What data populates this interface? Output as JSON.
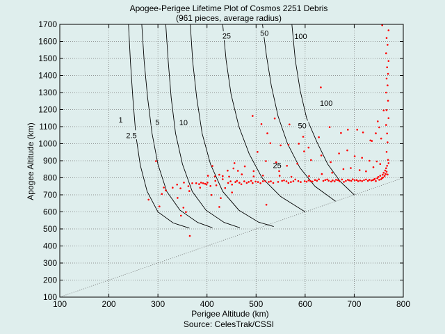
{
  "figure": {
    "background": "#dfeeed",
    "title_line1": "Apogee-Perigee Lifetime Plot of Cosmos 2251 Debris",
    "title_line2": "(961 pieces, average radius)",
    "source": "Source: CelesTrak/CSSI"
  },
  "chart_data": {
    "type": "scatter",
    "title": "Apogee-Perigee Lifetime Plot of Cosmos 2251 Debris",
    "subtitle": "(961 pieces, average radius)",
    "xlabel": "Perigee Altitude (km)",
    "ylabel": "Apogee Altitude (km)",
    "xlim": [
      100,
      800
    ],
    "ylim": [
      100,
      1700
    ],
    "xticks": [
      100,
      200,
      300,
      400,
      500,
      600,
      700,
      800
    ],
    "yticks": [
      100,
      200,
      300,
      400,
      500,
      600,
      700,
      800,
      900,
      1000,
      1100,
      1200,
      1300,
      1400,
      1500,
      1600,
      1700
    ],
    "grid": true,
    "point_color": "#ff0000",
    "curve_color": "#000000",
    "reference_line": {
      "style": "dotted",
      "points": [
        [
          100,
          100
        ],
        [
          800,
          800
        ]
      ]
    },
    "contours": [
      {
        "label": "1",
        "points": [
          [
            364,
            505
          ],
          [
            331,
            535
          ],
          [
            300,
            600
          ],
          [
            278,
            720
          ],
          [
            264,
            875
          ],
          [
            255,
            1050
          ],
          [
            249,
            1260
          ],
          [
            244,
            1480
          ],
          [
            240,
            1700
          ]
        ],
        "label_at": [
          292,
          520
        ]
      },
      {
        "label": "2.5",
        "points": [
          [
            411,
            507
          ],
          [
            381,
            538
          ],
          [
            345,
            610
          ],
          [
            318,
            720
          ],
          [
            300,
            880
          ],
          [
            288,
            1060
          ],
          [
            279,
            1270
          ],
          [
            272,
            1480
          ],
          [
            267,
            1700
          ]
        ],
        "label_at": [
          376,
          553
        ]
      },
      {
        "label": "5",
        "points": [
          [
            467,
            507
          ],
          [
            435,
            538
          ],
          [
            398,
            610
          ],
          [
            370,
            720
          ],
          [
            350,
            880
          ],
          [
            336,
            1060
          ],
          [
            327,
            1270
          ],
          [
            321,
            1480
          ],
          [
            316,
            1700
          ]
        ],
        "label_at": [
          432,
          580
        ]
      },
      {
        "label": "10",
        "points": [
          [
            536,
            514
          ],
          [
            505,
            540
          ],
          [
            465,
            610
          ],
          [
            432,
            720
          ],
          [
            407,
            880
          ],
          [
            390,
            1060
          ],
          [
            379,
            1270
          ],
          [
            371,
            1480
          ],
          [
            366,
            1700
          ]
        ],
        "label_at": [
          495,
          605
        ]
      },
      {
        "label": "25",
        "points": [
          [
            600,
            600
          ],
          [
            550,
            690
          ],
          [
            512,
            800
          ],
          [
            486,
            940
          ],
          [
            465,
            1100
          ],
          [
            449,
            1290
          ],
          [
            439,
            1490
          ],
          [
            432,
            1700
          ]
        ],
        "label_at": [
          556,
          1012
        ]
      },
      {
        "label": "50",
        "points": [
          [
            662,
            662
          ],
          [
            620,
            750
          ],
          [
            589,
            860
          ],
          [
            564,
            1000
          ],
          [
            545,
            1160
          ],
          [
            531,
            1340
          ],
          [
            521,
            1520
          ],
          [
            513,
            1700
          ]
        ],
        "label_at": [
          583,
          1053
        ]
      },
      {
        "label": "100",
        "points": [
          [
            700,
            700
          ],
          [
            671,
            780
          ],
          [
            646,
            880
          ],
          [
            624,
            1010
          ],
          [
            603,
            1150
          ],
          [
            590,
            1310
          ],
          [
            580,
            1490
          ],
          [
            573,
            1700
          ]
        ],
        "label_at": [
          628,
          1140
        ]
      },
      {
        "label": "1",
        "x": 224,
        "y": 1141
      },
      {
        "label": "2.5",
        "x": 246,
        "y": 1050
      },
      {
        "label": "5",
        "x": 299,
        "y": 1127
      },
      {
        "label": "10",
        "x": 352,
        "y": 1125
      },
      {
        "label": "25",
        "x": 543,
        "y": 873
      },
      {
        "label": "50",
        "x": 594,
        "y": 1107
      },
      {
        "label": "100",
        "x": 643,
        "y": 1238
      },
      {
        "label": "25",
        "x": 440,
        "y": 1632
      },
      {
        "label": "50",
        "x": 517,
        "y": 1650
      },
      {
        "label": "100",
        "x": 591,
        "y": 1630
      }
    ],
    "series": [
      {
        "points": [
          [
            281,
            672
          ],
          [
            296,
            898
          ],
          [
            303,
            632
          ],
          [
            308,
            705
          ],
          [
            312,
            743
          ],
          [
            316,
            726
          ],
          [
            346,
            738
          ],
          [
            340,
            682
          ],
          [
            352,
            625
          ],
          [
            357,
            599
          ],
          [
            347,
            578
          ],
          [
            365,
            459
          ],
          [
            370,
            768
          ],
          [
            378,
            768
          ],
          [
            384,
            763
          ],
          [
            388,
            772
          ],
          [
            392,
            768
          ],
          [
            396,
            765
          ],
          [
            401,
            772
          ],
          [
            407,
            752
          ],
          [
            411,
            869
          ],
          [
            417,
            782
          ],
          [
            425,
            629
          ],
          [
            432,
            792
          ],
          [
            437,
            740
          ],
          [
            443,
            770
          ],
          [
            448,
            779
          ],
          [
            451,
            760
          ],
          [
            458,
            775
          ],
          [
            461,
            782
          ],
          [
            466,
            771
          ],
          [
            470,
            762
          ],
          [
            476,
            779
          ],
          [
            481,
            770
          ],
          [
            485,
            776
          ],
          [
            490,
            782
          ],
          [
            493,
            769
          ],
          [
            499,
            778
          ],
          [
            504,
            775
          ],
          [
            509,
            768
          ],
          [
            514,
            780
          ],
          [
            519,
            780
          ],
          [
            521,
            642
          ],
          [
            526,
            776
          ],
          [
            530,
            779
          ],
          [
            535,
            770
          ],
          [
            538,
            1148
          ],
          [
            545,
            776
          ],
          [
            547,
            839
          ],
          [
            553,
            782
          ],
          [
            557,
            785
          ],
          [
            562,
            779
          ],
          [
            566,
            770
          ],
          [
            568,
            1113
          ],
          [
            571,
            775
          ],
          [
            576,
            780
          ],
          [
            580,
            790
          ],
          [
            586,
            781
          ],
          [
            591,
            775
          ],
          [
            596,
            1041
          ],
          [
            599,
            780
          ],
          [
            603,
            777
          ],
          [
            607,
            785
          ],
          [
            611,
            781
          ],
          [
            615,
            778
          ],
          [
            620,
            787
          ],
          [
            624,
            783
          ],
          [
            628,
            791
          ],
          [
            632,
            1330
          ],
          [
            637,
            782
          ],
          [
            641,
            787
          ],
          [
            645,
            790
          ],
          [
            648,
            783
          ],
          [
            653,
            778
          ],
          [
            656,
            785
          ],
          [
            660,
            779
          ],
          [
            663,
            788
          ],
          [
            667,
            786
          ],
          [
            670,
            780
          ],
          [
            675,
            790
          ],
          [
            679,
            776
          ],
          [
            683,
            782
          ],
          [
            687,
            788
          ],
          [
            690,
            785
          ],
          [
            694,
            782
          ],
          [
            697,
            791
          ],
          [
            701,
            785
          ],
          [
            705,
            787
          ],
          [
            708,
            780
          ],
          [
            712,
            784
          ],
          [
            716,
            781
          ],
          [
            720,
            786
          ],
          [
            724,
            790
          ],
          [
            728,
            782
          ],
          [
            731,
            788
          ],
          [
            735,
            784
          ],
          [
            738,
            786
          ],
          [
            740,
            790
          ],
          [
            742,
            794
          ],
          [
            744,
            781
          ],
          [
            747,
            797
          ],
          [
            749,
            805
          ],
          [
            751,
            788
          ],
          [
            753,
            812
          ],
          [
            755,
            792
          ],
          [
            757,
            799
          ],
          [
            758,
            818
          ],
          [
            759,
            802
          ],
          [
            760,
            830
          ],
          [
            762,
            811
          ],
          [
            763,
            843
          ],
          [
            764,
            822
          ],
          [
            765,
            856
          ],
          [
            766,
            836
          ],
          [
            767,
            870
          ],
          [
            768,
            819
          ],
          [
            769,
            905
          ],
          [
            770,
            886
          ],
          [
            766,
            952
          ],
          [
            768,
            1008
          ],
          [
            767,
            1060
          ],
          [
            765,
            1110
          ],
          [
            770,
            1150
          ],
          [
            766,
            1197
          ],
          [
            769,
            1252
          ],
          [
            765,
            1300
          ],
          [
            768,
            1342
          ],
          [
            766,
            1382
          ],
          [
            769,
            1410
          ],
          [
            767,
            1448
          ],
          [
            770,
            1485
          ],
          [
            765,
            1530
          ],
          [
            768,
            1580
          ],
          [
            766,
            1620
          ],
          [
            770,
            1665
          ],
          [
            757,
            1695
          ],
          [
            746,
            896
          ],
          [
            731,
            900
          ],
          [
            716,
            917
          ],
          [
            701,
            926
          ],
          [
            686,
            961
          ],
          [
            669,
            943
          ],
          [
            652,
            892
          ],
          [
            633,
            931
          ],
          [
            612,
            904
          ],
          [
            598,
            955
          ],
          [
            584,
            883
          ],
          [
            563,
            870
          ],
          [
            541,
            891
          ],
          [
            520,
            898
          ],
          [
            503,
            952
          ],
          [
            495,
            839
          ],
          [
            477,
            867
          ],
          [
            456,
            886
          ],
          [
            442,
            842
          ],
          [
            419,
            756
          ],
          [
            399,
            761
          ],
          [
            386,
            742
          ],
          [
            364,
            722
          ],
          [
            339,
            760
          ],
          [
            330,
            742
          ],
          [
            353,
            772
          ],
          [
            362,
            751
          ],
          [
            409,
            699
          ],
          [
            428,
            681
          ],
          [
            451,
            714
          ],
          [
            495,
            808
          ],
          [
            514,
            813
          ],
          [
            548,
            812
          ],
          [
            572,
            806
          ],
          [
            608,
            810
          ],
          [
            634,
            822
          ],
          [
            655,
            830
          ],
          [
            678,
            851
          ],
          [
            693,
            857
          ],
          [
            711,
            845
          ],
          [
            724,
            838
          ],
          [
            739,
            862
          ],
          [
            753,
            881
          ],
          [
            736,
            1016
          ],
          [
            744,
            1061
          ],
          [
            751,
            1096
          ],
          [
            748,
            1131
          ],
          [
            760,
            1195
          ],
          [
            755,
            1030
          ],
          [
            733,
            1019
          ],
          [
            718,
            1066
          ],
          [
            706,
            1082
          ],
          [
            687,
            1082
          ],
          [
            673,
            1063
          ],
          [
            650,
            1097
          ],
          [
            628,
            1038
          ],
          [
            607,
            977
          ],
          [
            587,
            1000
          ],
          [
            566,
            994
          ],
          [
            550,
            990
          ],
          [
            529,
            1003
          ],
          [
            523,
            1061
          ],
          [
            511,
            1115
          ],
          [
            493,
            1163
          ],
          [
            471,
            820
          ],
          [
            463,
            841
          ],
          [
            454,
            855
          ],
          [
            445,
            807
          ],
          [
            432,
            810
          ],
          [
            425,
            818
          ],
          [
            416,
            808
          ],
          [
            402,
            812
          ]
        ]
      }
    ]
  }
}
